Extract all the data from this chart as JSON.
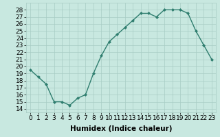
{
  "x": [
    0,
    1,
    2,
    3,
    4,
    5,
    6,
    7,
    8,
    9,
    10,
    11,
    12,
    13,
    14,
    15,
    16,
    17,
    18,
    19,
    20,
    21,
    22,
    23
  ],
  "y": [
    19.5,
    18.5,
    17.5,
    15.0,
    15.0,
    14.5,
    15.5,
    16.0,
    19.0,
    21.5,
    23.5,
    24.5,
    25.5,
    26.5,
    27.5,
    27.5,
    27.0,
    28.0,
    28.0,
    28.0,
    27.5,
    25.0,
    23.0,
    21.0
  ],
  "line_color": "#2e7d6e",
  "marker": "D",
  "marker_size": 2,
  "bg_color": "#c8e8e0",
  "grid_color": "#a8ccc4",
  "xlabel": "Humidex (Indice chaleur)",
  "ylabel_ticks": [
    14,
    15,
    16,
    17,
    18,
    19,
    20,
    21,
    22,
    23,
    24,
    25,
    26,
    27,
    28
  ],
  "ylim": [
    13.5,
    29.0
  ],
  "xlim": [
    -0.5,
    23.5
  ],
  "xtick_labels": [
    "0",
    "1",
    "2",
    "3",
    "4",
    "5",
    "6",
    "7",
    "8",
    "9",
    "10",
    "11",
    "12",
    "13",
    "14",
    "15",
    "16",
    "17",
    "18",
    "19",
    "20",
    "21",
    "22",
    "23"
  ],
  "xlabel_fontsize": 7.5,
  "tick_fontsize": 6.5,
  "line_width": 1.0
}
